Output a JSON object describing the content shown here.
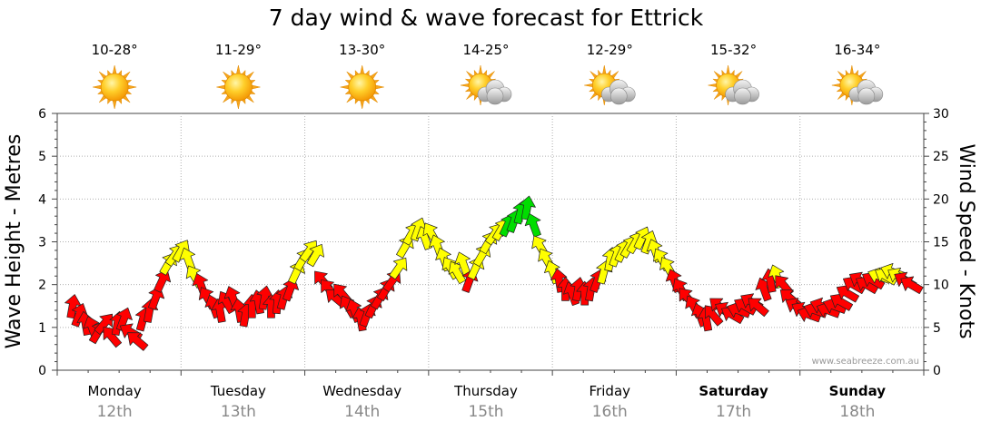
{
  "chart_data": {
    "type": "line",
    "title": "7 day wind & wave forecast for Ettrick",
    "ylabel": "Wave Height - Metres",
    "y2label": "Wind Speed - Knots",
    "ylim": [
      0,
      6
    ],
    "y2lim": [
      0,
      30
    ],
    "yticks": [
      "0",
      "1",
      "2",
      "3",
      "4",
      "5",
      "6"
    ],
    "y2ticks": [
      "0",
      "5",
      "10",
      "15",
      "20",
      "25",
      "30"
    ],
    "watermark": "www.seabreeze.com.au",
    "grid": true,
    "days": [
      {
        "name": "Monday",
        "date": "12th",
        "temp": "10-28°",
        "weather_icon": "sunny-icon",
        "bold": false
      },
      {
        "name": "Tuesday",
        "date": "13th",
        "temp": "11-29°",
        "weather_icon": "sunny-icon",
        "bold": false
      },
      {
        "name": "Wednesday",
        "date": "14th",
        "temp": "13-30°",
        "weather_icon": "sunny-icon",
        "bold": false
      },
      {
        "name": "Thursday",
        "date": "15th",
        "temp": "14-25°",
        "weather_icon": "partly-cloudy-icon",
        "bold": false
      },
      {
        "name": "Friday",
        "date": "16th",
        "temp": "12-29°",
        "weather_icon": "partly-cloudy-icon",
        "bold": false
      },
      {
        "name": "Saturday",
        "date": "17th",
        "temp": "15-32°",
        "weather_icon": "partly-cloudy-icon",
        "bold": true
      },
      {
        "name": "Sunday",
        "date": "18th",
        "temp": "16-34°",
        "weather_icon": "partly-cloudy-icon",
        "bold": true
      }
    ],
    "series": [
      {
        "type": "wind-arrows",
        "x_unit": "hour of week",
        "y_unit": "knots",
        "color_scale": {
          "low": "#ff0000",
          "mid": "#ffff00",
          "high": "#00dd00"
        },
        "points": [
          {
            "t": 1,
            "y": 7.5,
            "dir": 10
          },
          {
            "t": 2,
            "y": 6.5,
            "dir": 20
          },
          {
            "t": 3,
            "y": 5.5,
            "dir": 350
          },
          {
            "t": 4,
            "y": 5.0,
            "dir": 340
          },
          {
            "t": 5,
            "y": 4.5,
            "dir": 30
          },
          {
            "t": 6,
            "y": 5.5,
            "dir": 40
          },
          {
            "t": 7,
            "y": 4.0,
            "dir": 320
          },
          {
            "t": 8,
            "y": 5.5,
            "dir": 10
          },
          {
            "t": 9,
            "y": 6.0,
            "dir": 20
          },
          {
            "t": 10,
            "y": 4.5,
            "dir": 300
          },
          {
            "t": 11,
            "y": 3.5,
            "dir": 310
          },
          {
            "t": 12,
            "y": 6.0,
            "dir": 15
          },
          {
            "t": 13,
            "y": 7.0,
            "dir": 10
          },
          {
            "t": 14,
            "y": 8.5,
            "dir": 20
          },
          {
            "t": 15,
            "y": 10.5,
            "dir": 25
          },
          {
            "t": 16,
            "y": 12.5,
            "dir": 30
          },
          {
            "t": 17,
            "y": 13.5,
            "dir": 35
          },
          {
            "t": 18,
            "y": 14.0,
            "dir": 30
          },
          {
            "t": 19,
            "y": 13.0,
            "dir": 340
          },
          {
            "t": 20,
            "y": 11.0,
            "dir": 330
          },
          {
            "t": 21,
            "y": 10.0,
            "dir": 340
          },
          {
            "t": 22,
            "y": 8.5,
            "dir": 330
          },
          {
            "t": 23,
            "y": 7.5,
            "dir": 340
          },
          {
            "t": 24,
            "y": 7.0,
            "dir": 350
          },
          {
            "t": 25,
            "y": 8.0,
            "dir": 330
          },
          {
            "t": 26,
            "y": 8.5,
            "dir": 340
          },
          {
            "t": 27,
            "y": 7.0,
            "dir": 350
          },
          {
            "t": 28,
            "y": 6.5,
            "dir": 10
          },
          {
            "t": 29,
            "y": 7.5,
            "dir": 0
          },
          {
            "t": 30,
            "y": 8.0,
            "dir": 350
          },
          {
            "t": 31,
            "y": 8.5,
            "dir": 10
          },
          {
            "t": 32,
            "y": 7.5,
            "dir": 0
          },
          {
            "t": 33,
            "y": 8.0,
            "dir": 5
          },
          {
            "t": 34,
            "y": 8.5,
            "dir": 15
          },
          {
            "t": 35,
            "y": 9.5,
            "dir": 20
          },
          {
            "t": 36,
            "y": 11.5,
            "dir": 25
          },
          {
            "t": 37,
            "y": 13.0,
            "dir": 30
          },
          {
            "t": 38,
            "y": 14.0,
            "dir": 35
          },
          {
            "t": 39,
            "y": 13.5,
            "dir": 30
          },
          {
            "t": 40,
            "y": 10.5,
            "dir": 320
          },
          {
            "t": 41,
            "y": 9.5,
            "dir": 320
          },
          {
            "t": 42,
            "y": 8.5,
            "dir": 310
          },
          {
            "t": 43,
            "y": 9.0,
            "dir": 320
          },
          {
            "t": 44,
            "y": 7.5,
            "dir": 330
          },
          {
            "t": 45,
            "y": 7.0,
            "dir": 340
          },
          {
            "t": 46,
            "y": 6.0,
            "dir": 350
          },
          {
            "t": 47,
            "y": 6.5,
            "dir": 20
          },
          {
            "t": 48,
            "y": 7.5,
            "dir": 25
          },
          {
            "t": 49,
            "y": 8.5,
            "dir": 30
          },
          {
            "t": 50,
            "y": 9.5,
            "dir": 30
          },
          {
            "t": 51,
            "y": 10.5,
            "dir": 35
          },
          {
            "t": 52,
            "y": 12.0,
            "dir": 35
          },
          {
            "t": 53,
            "y": 14.5,
            "dir": 30
          },
          {
            "t": 54,
            "y": 16.0,
            "dir": 30
          },
          {
            "t": 55,
            "y": 16.5,
            "dir": 20
          },
          {
            "t": 56,
            "y": 15.5,
            "dir": 340
          },
          {
            "t": 57,
            "y": 16.0,
            "dir": 330
          },
          {
            "t": 58,
            "y": 14.5,
            "dir": 340
          },
          {
            "t": 59,
            "y": 13.0,
            "dir": 340
          },
          {
            "t": 60,
            "y": 12.0,
            "dir": 330
          },
          {
            "t": 61,
            "y": 11.5,
            "dir": 330
          },
          {
            "t": 62,
            "y": 12.5,
            "dir": 340
          },
          {
            "t": 63,
            "y": 10.5,
            "dir": 20
          },
          {
            "t": 64,
            "y": 12.0,
            "dir": 25
          },
          {
            "t": 65,
            "y": 13.5,
            "dir": 30
          },
          {
            "t": 66,
            "y": 15.0,
            "dir": 30
          },
          {
            "t": 67,
            "y": 16.0,
            "dir": 35
          },
          {
            "t": 68,
            "y": 16.5,
            "dir": 30
          },
          {
            "t": 69,
            "y": 17.0,
            "dir": 25
          },
          {
            "t": 70,
            "y": 17.5,
            "dir": 20
          },
          {
            "t": 71,
            "y": 18.5,
            "dir": 15
          },
          {
            "t": 72,
            "y": 19.0,
            "dir": 10
          },
          {
            "t": 73,
            "y": 17.0,
            "dir": 340
          },
          {
            "t": 74,
            "y": 14.5,
            "dir": 330
          },
          {
            "t": 75,
            "y": 13.0,
            "dir": 330
          },
          {
            "t": 76,
            "y": 11.5,
            "dir": 340
          },
          {
            "t": 77,
            "y": 10.5,
            "dir": 350
          },
          {
            "t": 78,
            "y": 9.5,
            "dir": 0
          },
          {
            "t": 79,
            "y": 9.0,
            "dir": 340
          },
          {
            "t": 80,
            "y": 9.5,
            "dir": 10
          },
          {
            "t": 81,
            "y": 9.0,
            "dir": 0
          },
          {
            "t": 82,
            "y": 9.5,
            "dir": 10
          },
          {
            "t": 83,
            "y": 10.5,
            "dir": 20
          },
          {
            "t": 84,
            "y": 11.5,
            "dir": 15
          },
          {
            "t": 85,
            "y": 13.0,
            "dir": 10
          },
          {
            "t": 86,
            "y": 13.5,
            "dir": 20
          },
          {
            "t": 87,
            "y": 14.0,
            "dir": 25
          },
          {
            "t": 88,
            "y": 14.5,
            "dir": 30
          },
          {
            "t": 89,
            "y": 15.0,
            "dir": 30
          },
          {
            "t": 90,
            "y": 15.5,
            "dir": 25
          },
          {
            "t": 91,
            "y": 15.0,
            "dir": 20
          },
          {
            "t": 92,
            "y": 14.0,
            "dir": 340
          },
          {
            "t": 93,
            "y": 13.0,
            "dir": 330
          },
          {
            "t": 94,
            "y": 12.0,
            "dir": 330
          },
          {
            "t": 95,
            "y": 10.5,
            "dir": 340
          },
          {
            "t": 96,
            "y": 9.5,
            "dir": 330
          },
          {
            "t": 97,
            "y": 8.5,
            "dir": 320
          },
          {
            "t": 98,
            "y": 7.5,
            "dir": 330
          },
          {
            "t": 99,
            "y": 6.5,
            "dir": 340
          },
          {
            "t": 100,
            "y": 6.0,
            "dir": 350
          },
          {
            "t": 101,
            "y": 6.5,
            "dir": 320
          },
          {
            "t": 102,
            "y": 7.5,
            "dir": 310
          },
          {
            "t": 103,
            "y": 7.0,
            "dir": 300
          },
          {
            "t": 104,
            "y": 6.5,
            "dir": 300
          },
          {
            "t": 105,
            "y": 7.0,
            "dir": 290
          },
          {
            "t": 106,
            "y": 7.5,
            "dir": 300
          },
          {
            "t": 107,
            "y": 8.0,
            "dir": 300
          },
          {
            "t": 108,
            "y": 7.5,
            "dir": 310
          },
          {
            "t": 109,
            "y": 9.5,
            "dir": 340
          },
          {
            "t": 110,
            "y": 10.5,
            "dir": 350
          },
          {
            "t": 111,
            "y": 11.0,
            "dir": 340
          },
          {
            "t": 112,
            "y": 10.0,
            "dir": 320
          },
          {
            "t": 113,
            "y": 8.5,
            "dir": 310
          },
          {
            "t": 114,
            "y": 7.5,
            "dir": 300
          },
          {
            "t": 115,
            "y": 7.0,
            "dir": 300
          },
          {
            "t": 116,
            "y": 6.5,
            "dir": 290
          },
          {
            "t": 117,
            "y": 7.0,
            "dir": 290
          },
          {
            "t": 118,
            "y": 7.5,
            "dir": 290
          },
          {
            "t": 119,
            "y": 7.0,
            "dir": 290
          },
          {
            "t": 120,
            "y": 7.5,
            "dir": 290
          },
          {
            "t": 121,
            "y": 8.0,
            "dir": 300
          },
          {
            "t": 122,
            "y": 9.0,
            "dir": 300
          },
          {
            "t": 123,
            "y": 10.0,
            "dir": 300
          },
          {
            "t": 124,
            "y": 10.5,
            "dir": 300
          },
          {
            "t": 125,
            "y": 10.0,
            "dir": 300
          },
          {
            "t": 126,
            "y": 10.5,
            "dir": 300
          },
          {
            "t": 127,
            "y": 11.0,
            "dir": 290
          },
          {
            "t": 128,
            "y": 11.0,
            "dir": 300
          },
          {
            "t": 129,
            "y": 11.5,
            "dir": 290
          },
          {
            "t": 130,
            "y": 11.0,
            "dir": 300
          },
          {
            "t": 131,
            "y": 10.5,
            "dir": 300
          },
          {
            "t": 132,
            "y": 10.0,
            "dir": 300
          }
        ]
      }
    ]
  }
}
